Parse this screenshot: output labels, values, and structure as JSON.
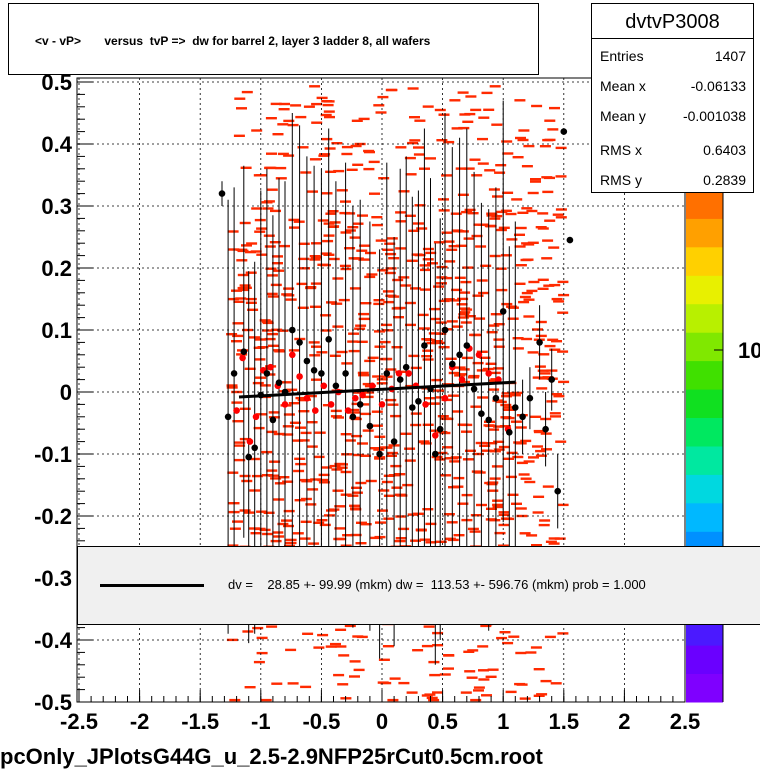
{
  "title": "<v - vP>       versus  tvP =>  dw for barrel 2, layer 3 ladder 8, all wafers",
  "stats": {
    "name": "dvtvP3008",
    "rows": [
      {
        "key": "Entries",
        "value": "1407"
      },
      {
        "key": "Mean x",
        "value": "-0.06133"
      },
      {
        "key": "Mean y",
        "value": "-0.001038"
      },
      {
        "key": "RMS x",
        "value": "0.6403"
      },
      {
        "key": "RMS y",
        "value": "0.2839"
      }
    ]
  },
  "legend": {
    "text": "dv =    28.85 +- 99.99 (mkm) dw =  113.53 +- 596.76 (mkm) prob = 1.000"
  },
  "colorbar": {
    "labels": [
      "10",
      "10"
    ]
  },
  "footer": "pcOnly_JPlotsG44G_u_2.5-2.9NFP25rCut0.5cm.root",
  "colors": {
    "scatter": "#ff2a00",
    "black_points": "#000000",
    "red_points": "#ff0000",
    "grid": "#000000"
  },
  "chart_data": {
    "type": "scatter",
    "xlim": [
      -2.5,
      2.5
    ],
    "ylim": [
      -0.5,
      0.5
    ],
    "x_ticks": [
      "-2.5",
      "-2",
      "-1.5",
      "-1",
      "-0.5",
      "0",
      "0.5",
      "1",
      "1.5",
      "2",
      "2.5"
    ],
    "y_ticks": [
      "-0.5",
      "-0.4",
      "-0.3",
      "-0.2",
      "-0.1",
      "0",
      "0.1",
      "0.2",
      "0.3",
      "0.4",
      "0.5"
    ],
    "grid": true,
    "fit_line": {
      "x": [
        -1.18,
        1.1
      ],
      "y": [
        -0.008,
        0.016
      ]
    },
    "black_profile": [
      {
        "x": -1.32,
        "y": 0.32,
        "err": 0.02
      },
      {
        "x": -1.27,
        "y": -0.04,
        "err": 0.35
      },
      {
        "x": -1.22,
        "y": 0.03,
        "err": 0.3
      },
      {
        "x": -1.14,
        "y": 0.065,
        "err": 0.3
      },
      {
        "x": -1.1,
        "y": -0.105,
        "err": 0.3
      },
      {
        "x": -1.05,
        "y": -0.09,
        "err": 0.3
      },
      {
        "x": -1.0,
        "y": -0.005,
        "err": 0.33
      },
      {
        "x": -0.95,
        "y": 0.03,
        "err": 0.33
      },
      {
        "x": -0.9,
        "y": -0.045,
        "err": 0.33
      },
      {
        "x": -0.85,
        "y": 0.015,
        "err": 0.33
      },
      {
        "x": -0.8,
        "y": 0.0,
        "err": 0.34
      },
      {
        "x": -0.74,
        "y": 0.1,
        "err": 0.35
      },
      {
        "x": -0.68,
        "y": 0.08,
        "err": 0.35
      },
      {
        "x": -0.62,
        "y": 0.05,
        "err": 0.33
      },
      {
        "x": -0.56,
        "y": 0.035,
        "err": 0.33
      },
      {
        "x": -0.5,
        "y": 0.03,
        "err": 0.33
      },
      {
        "x": -0.44,
        "y": 0.085,
        "err": 0.34
      },
      {
        "x": -0.38,
        "y": 0.01,
        "err": 0.33
      },
      {
        "x": -0.3,
        "y": 0.03,
        "err": 0.34
      },
      {
        "x": -0.24,
        "y": -0.04,
        "err": 0.34
      },
      {
        "x": -0.18,
        "y": -0.02,
        "err": 0.33
      },
      {
        "x": -0.1,
        "y": -0.055,
        "err": 0.33
      },
      {
        "x": -0.02,
        "y": -0.1,
        "err": 0.33
      },
      {
        "x": 0.04,
        "y": 0.03,
        "err": 0.34
      },
      {
        "x": 0.1,
        "y": -0.08,
        "err": 0.33
      },
      {
        "x": 0.15,
        "y": 0.02,
        "err": 0.34
      },
      {
        "x": 0.2,
        "y": 0.04,
        "err": 0.34
      },
      {
        "x": 0.25,
        "y": -0.025,
        "err": 0.34
      },
      {
        "x": 0.3,
        "y": -0.015,
        "err": 0.34
      },
      {
        "x": 0.35,
        "y": 0.075,
        "err": 0.35
      },
      {
        "x": 0.4,
        "y": 0.005,
        "err": 0.34
      },
      {
        "x": 0.44,
        "y": -0.1,
        "err": 0.34
      },
      {
        "x": 0.48,
        "y": -0.06,
        "err": 0.34
      },
      {
        "x": 0.52,
        "y": 0.1,
        "err": 0.35
      },
      {
        "x": 0.58,
        "y": 0.045,
        "err": 0.35
      },
      {
        "x": 0.64,
        "y": 0.06,
        "err": 0.35
      },
      {
        "x": 0.7,
        "y": 0.075,
        "err": 0.35
      },
      {
        "x": 0.76,
        "y": 0.005,
        "err": 0.35
      },
      {
        "x": 0.82,
        "y": -0.035,
        "err": 0.34
      },
      {
        "x": 0.88,
        "y": -0.045,
        "err": 0.34
      },
      {
        "x": 0.94,
        "y": -0.01,
        "err": 0.34
      },
      {
        "x": 1.0,
        "y": 0.13,
        "err": 0.34
      },
      {
        "x": 1.05,
        "y": -0.065,
        "err": 0.3
      },
      {
        "x": 1.1,
        "y": -0.025,
        "err": 0.3
      },
      {
        "x": 1.16,
        "y": -0.04,
        "err": 0.06
      },
      {
        "x": 1.22,
        "y": -0.01,
        "err": 0.05
      },
      {
        "x": 1.3,
        "y": 0.08,
        "err": 0.06
      },
      {
        "x": 1.35,
        "y": -0.06,
        "err": 0.06
      },
      {
        "x": 1.4,
        "y": 0.02,
        "err": 0.05
      },
      {
        "x": 1.45,
        "y": -0.16,
        "err": 0.06
      },
      {
        "x": 1.5,
        "y": 0.42,
        "err": 0.0
      },
      {
        "x": 1.55,
        "y": 0.245,
        "err": 0.0
      }
    ],
    "red_profile": [
      {
        "x": -1.2,
        "y": -0.03
      },
      {
        "x": -1.15,
        "y": 0.055
      },
      {
        "x": -1.09,
        "y": -0.08
      },
      {
        "x": -1.04,
        "y": -0.04
      },
      {
        "x": -0.98,
        "y": 0.035
      },
      {
        "x": -0.92,
        "y": 0.04
      },
      {
        "x": -0.86,
        "y": 0.01
      },
      {
        "x": -0.8,
        "y": -0.02
      },
      {
        "x": -0.74,
        "y": 0.06
      },
      {
        "x": -0.68,
        "y": 0.025
      },
      {
        "x": -0.62,
        "y": -0.01
      },
      {
        "x": -0.55,
        "y": -0.03
      },
      {
        "x": -0.48,
        "y": 0.01
      },
      {
        "x": -0.42,
        "y": -0.02
      },
      {
        "x": -0.36,
        "y": 0.0
      },
      {
        "x": -0.28,
        "y": -0.03
      },
      {
        "x": -0.22,
        "y": -0.01
      },
      {
        "x": -0.16,
        "y": -0.005
      },
      {
        "x": -0.08,
        "y": 0.01
      },
      {
        "x": 0.0,
        "y": -0.02
      },
      {
        "x": 0.08,
        "y": 0.005
      },
      {
        "x": 0.14,
        "y": 0.03
      },
      {
        "x": 0.22,
        "y": 0.03
      },
      {
        "x": 0.28,
        "y": 0.01
      },
      {
        "x": 0.36,
        "y": -0.02
      },
      {
        "x": 0.44,
        "y": -0.07
      },
      {
        "x": 0.52,
        "y": -0.01
      },
      {
        "x": 0.58,
        "y": 0.04
      },
      {
        "x": 0.66,
        "y": 0.02
      },
      {
        "x": 0.72,
        "y": 0.07
      },
      {
        "x": 0.8,
        "y": 0.06
      },
      {
        "x": 0.88,
        "y": 0.03
      },
      {
        "x": 0.96,
        "y": 0.02
      },
      {
        "x": 1.04,
        "y": -0.06
      }
    ]
  }
}
